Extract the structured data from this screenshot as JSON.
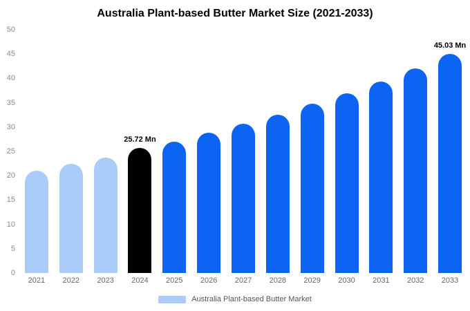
{
  "title": "Australia Plant-based Butter Market Size (2021-2033)",
  "legend": {
    "label": "Australia Plant-based Butter Market",
    "swatch_color": "#a9cdf8"
  },
  "colors": {
    "light_blue": "#a9cdf8",
    "primary_blue": "#0d64f2",
    "highlight_black": "#000000",
    "background": "#ffffff"
  },
  "chart_data": {
    "type": "bar",
    "title": "Australia Plant-based Butter Market Size (2021-2033)",
    "xlabel": "",
    "ylabel": "",
    "unit": "Mn",
    "ylim": [
      0,
      50
    ],
    "ytick_step": 5,
    "yticks": [
      0,
      5,
      10,
      15,
      20,
      25,
      30,
      35,
      40,
      45,
      50
    ],
    "grid": false,
    "legend_position": "bottom",
    "categories": [
      "2021",
      "2022",
      "2023",
      "2024",
      "2025",
      "2026",
      "2027",
      "2028",
      "2029",
      "2030",
      "2031",
      "2032",
      "2033"
    ],
    "values": [
      21,
      22.4,
      23.7,
      25.72,
      27,
      28.8,
      30.7,
      32.6,
      34.8,
      37,
      39.3,
      42,
      45.03
    ],
    "bar_colors": [
      "#a9cdf8",
      "#a9cdf8",
      "#a9cdf8",
      "#000000",
      "#0d64f2",
      "#0d64f2",
      "#0d64f2",
      "#0d64f2",
      "#0d64f2",
      "#0d64f2",
      "#0d64f2",
      "#0d64f2",
      "#0d64f2"
    ],
    "point_labels": [
      "",
      "",
      "",
      "25.72 Mn",
      "",
      "",
      "",
      "",
      "",
      "",
      "",
      "",
      "45.03 Mn"
    ]
  }
}
